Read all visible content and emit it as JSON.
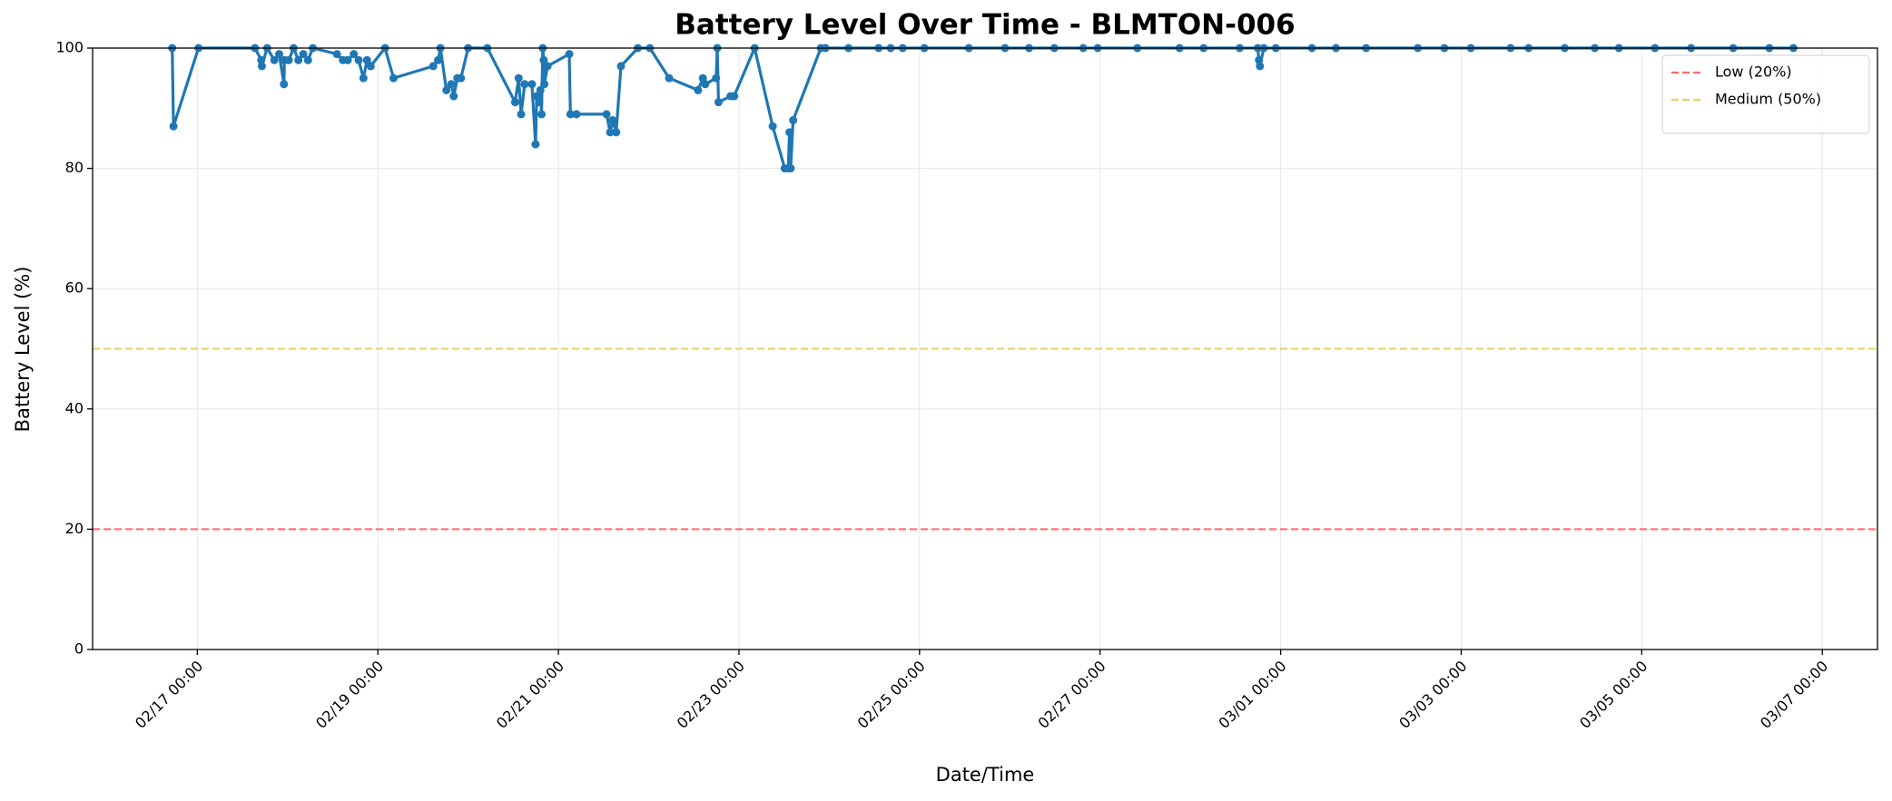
{
  "chart_data": {
    "type": "line",
    "title": "Battery Level Over Time - BLMTON-006",
    "x_label": "Date/Time",
    "y_label": "Battery Level (%)",
    "color": "#1f77b4",
    "grid": true,
    "legend": "upper right",
    "x": [
      "02/16 17:20",
      "02/16 17:40",
      "02/17 00:19",
      "02/17 15:20",
      "02/17 17:00",
      "02/17 17:10",
      "02/17 18:34",
      "02/17 20:29",
      "02/17 21:46",
      "02/17 23:02",
      "02/17 23:10",
      "02/18 00:19",
      "02/18 01:36",
      "02/18 02:53",
      "02/18 04:10",
      "02/18 05:26",
      "02/18 06:43",
      "02/18 13:07",
      "02/18 14:43",
      "02/18 16:00",
      "02/18 17:36",
      "02/18 18:53",
      "02/18 20:10",
      "02/18 21:07",
      "02/18 22:05",
      "02/19 01:55",
      "02/19 04:10",
      "02/19 14:43",
      "02/19 16:00",
      "02/19 16:38",
      "02/19 18:14",
      "02/19 19:31",
      "02/19 20:10",
      "02/19 21:07",
      "02/19 22:05",
      "02/20 00:00",
      "02/20 05:07",
      "02/20 12:29",
      "02/20 13:26",
      "02/20 14:05",
      "02/20 15:02",
      "02/20 16:58",
      "02/20 17:55",
      "02/20 18:14",
      "02/20 18:53",
      "02/20 19:12",
      "02/20 19:31",
      "02/20 19:50",
      "02/20 20:05",
      "02/20 20:15",
      "02/20 21:07",
      "02/21 02:53",
      "02/21 03:12",
      "02/21 04:48",
      "02/21 12:48",
      "02/21 13:46",
      "02/21 14:24",
      "02/21 15:22",
      "02/21 16:38",
      "02/21 21:07",
      "02/22 00:19",
      "02/22 05:26",
      "02/22 13:07",
      "02/22 14:24",
      "02/22 15:02",
      "02/22 17:55",
      "02/22 18:14",
      "02/22 18:34",
      "02/22 21:46",
      "02/22 22:43",
      "02/23 04:10",
      "02/23 08:58",
      "02/23 12:10",
      "02/23 13:07",
      "02/23 13:26",
      "02/23 13:45",
      "02/23 14:24",
      "02/23 21:46",
      "02/23 23:00",
      "02/24 05:07",
      "02/24 13:07",
      "02/24 16:19",
      "02/24 19:31",
      "02/25 01:17",
      "02/25 13:07",
      "02/25 22:43",
      "02/26 05:07",
      "02/26 11:50",
      "02/26 19:31",
      "02/26 23:22",
      "02/27 09:55",
      "02/27 21:07",
      "02/28 03:31",
      "02/28 13:07",
      "02/28 17:55",
      "02/28 18:14",
      "02/28 18:30",
      "02/28 19:31",
      "02/28 22:43",
      "03/01 08:19",
      "03/01 14:43",
      "03/01 22:43",
      "03/02 12:29",
      "03/02 19:31",
      "03/03 02:34",
      "03/03 13:07",
      "03/03 17:55",
      "03/04 03:31",
      "03/04 11:31",
      "03/04 17:55",
      "03/05 03:31",
      "03/05 13:07",
      "03/06 00:19",
      "03/06 09:55",
      "03/06 16:19"
    ],
    "values": [
      100,
      87,
      100,
      100,
      98,
      97,
      100,
      98,
      99,
      94,
      98,
      98,
      100,
      98,
      99,
      98,
      100,
      99,
      98,
      98,
      99,
      98,
      95,
      98,
      97,
      100,
      95,
      97,
      98,
      100,
      93,
      94,
      92,
      95,
      95,
      100,
      100,
      91,
      95,
      89,
      94,
      94,
      84,
      92,
      91,
      93,
      89,
      100,
      98,
      94,
      97,
      99,
      89,
      89,
      89,
      86,
      88,
      86,
      97,
      100,
      100,
      95,
      93,
      95,
      94,
      95,
      100,
      91,
      92,
      92,
      100,
      87,
      80,
      80,
      86,
      80,
      88,
      100,
      100,
      100,
      100,
      100,
      100,
      100,
      100,
      100,
      100,
      100,
      100,
      100,
      100,
      100,
      100,
      100,
      100,
      98,
      97,
      100,
      100,
      100,
      100,
      100,
      100,
      100,
      100,
      100,
      100,
      100,
      100,
      100,
      100,
      100,
      100,
      100,
      100
    ],
    "xlim": [
      "02/15 20:10",
      "03/07 14:40"
    ],
    "xticks": [
      "02/17 00:00",
      "02/19 00:00",
      "02/21 00:00",
      "02/23 00:00",
      "02/25 00:00",
      "02/27 00:00",
      "03/01 00:00",
      "03/03 00:00",
      "03/05 00:00",
      "03/07 00:00"
    ],
    "ylim": [
      0,
      100
    ],
    "yticks": [
      0,
      20,
      40,
      60,
      80,
      100
    ],
    "reference_lines": [
      {
        "name": "Low (20%)",
        "value": 20,
        "color": "#ff6b6b"
      },
      {
        "name": "Medium (50%)",
        "value": 50,
        "color": "#e6d15c"
      }
    ]
  }
}
